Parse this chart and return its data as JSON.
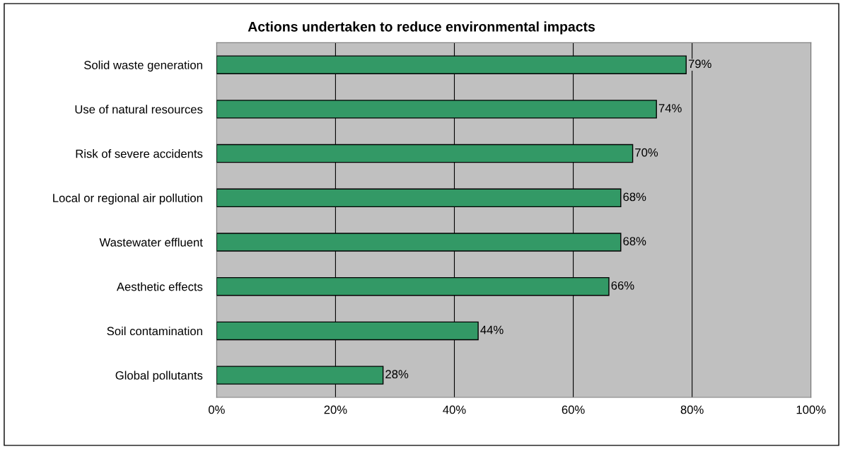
{
  "chart_data": {
    "type": "bar",
    "orientation": "horizontal",
    "title": "Actions undertaken to reduce environmental impacts",
    "categories": [
      "Solid waste generation",
      "Use of natural resources",
      "Risk of severe accidents",
      "Local or regional air pollution",
      "Wastewater effluent",
      "Aesthetic effects",
      "Soil contamination",
      "Global pollutants"
    ],
    "values": [
      79,
      74,
      70,
      68,
      68,
      66,
      44,
      28
    ],
    "value_labels": [
      "79%",
      "74%",
      "70%",
      "68%",
      "68%",
      "66%",
      "44%",
      "28%"
    ],
    "color": "#339966",
    "xlim": [
      0,
      100
    ],
    "xticks": [
      {
        "value": 0,
        "label": "0%"
      },
      {
        "value": 20,
        "label": "20%"
      },
      {
        "value": 40,
        "label": "40%"
      },
      {
        "value": 60,
        "label": "60%"
      },
      {
        "value": 80,
        "label": "80%"
      },
      {
        "value": 100,
        "label": "100%"
      }
    ],
    "grid": "x",
    "legend": false
  }
}
